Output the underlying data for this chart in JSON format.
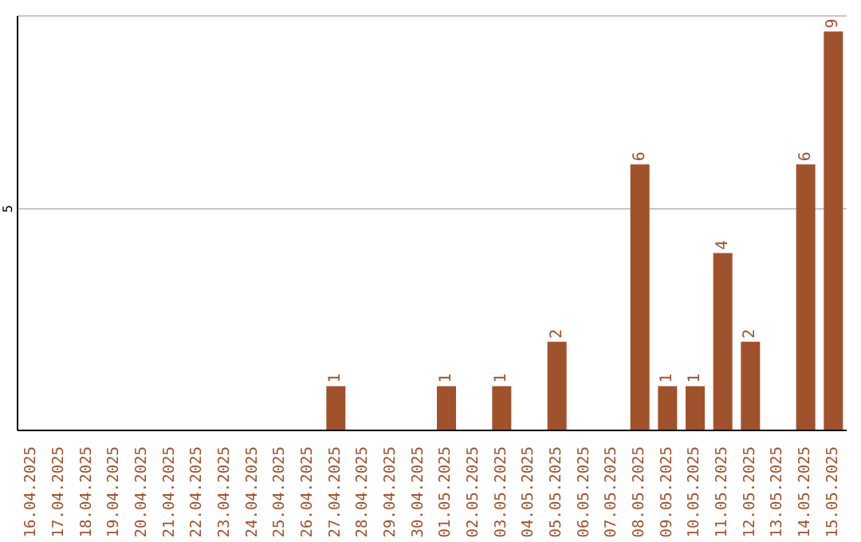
{
  "chart_data": {
    "type": "bar",
    "categories": [
      "16.04.2025",
      "17.04.2025",
      "18.04.2025",
      "19.04.2025",
      "20.04.2025",
      "21.04.2025",
      "22.04.2025",
      "23.04.2025",
      "24.04.2025",
      "25.04.2025",
      "26.04.2025",
      "27.04.2025",
      "28.04.2025",
      "29.04.2025",
      "30.04.2025",
      "01.05.2025",
      "02.05.2025",
      "03.05.2025",
      "04.05.2025",
      "05.05.2025",
      "06.05.2025",
      "07.05.2025",
      "08.05.2025",
      "09.05.2025",
      "10.05.2025",
      "11.05.2025",
      "12.05.2025",
      "13.05.2025",
      "14.05.2025",
      "15.05.2025"
    ],
    "values": [
      0,
      0,
      0,
      0,
      0,
      0,
      0,
      0,
      0,
      0,
      0,
      1,
      0,
      0,
      0,
      1,
      0,
      1,
      0,
      2,
      0,
      0,
      6,
      1,
      1,
      4,
      2,
      0,
      6,
      9
    ],
    "value_labels": [
      null,
      null,
      null,
      null,
      null,
      null,
      null,
      null,
      null,
      null,
      null,
      "1",
      null,
      null,
      null,
      "1",
      null,
      "1",
      null,
      "2",
      null,
      null,
      "6",
      "1",
      "1",
      "4",
      "2",
      null,
      "6",
      "9"
    ],
    "color": "#a0522d",
    "ylim": [
      0,
      9.35
    ],
    "yticks": [
      5
    ],
    "grid": "y"
  }
}
